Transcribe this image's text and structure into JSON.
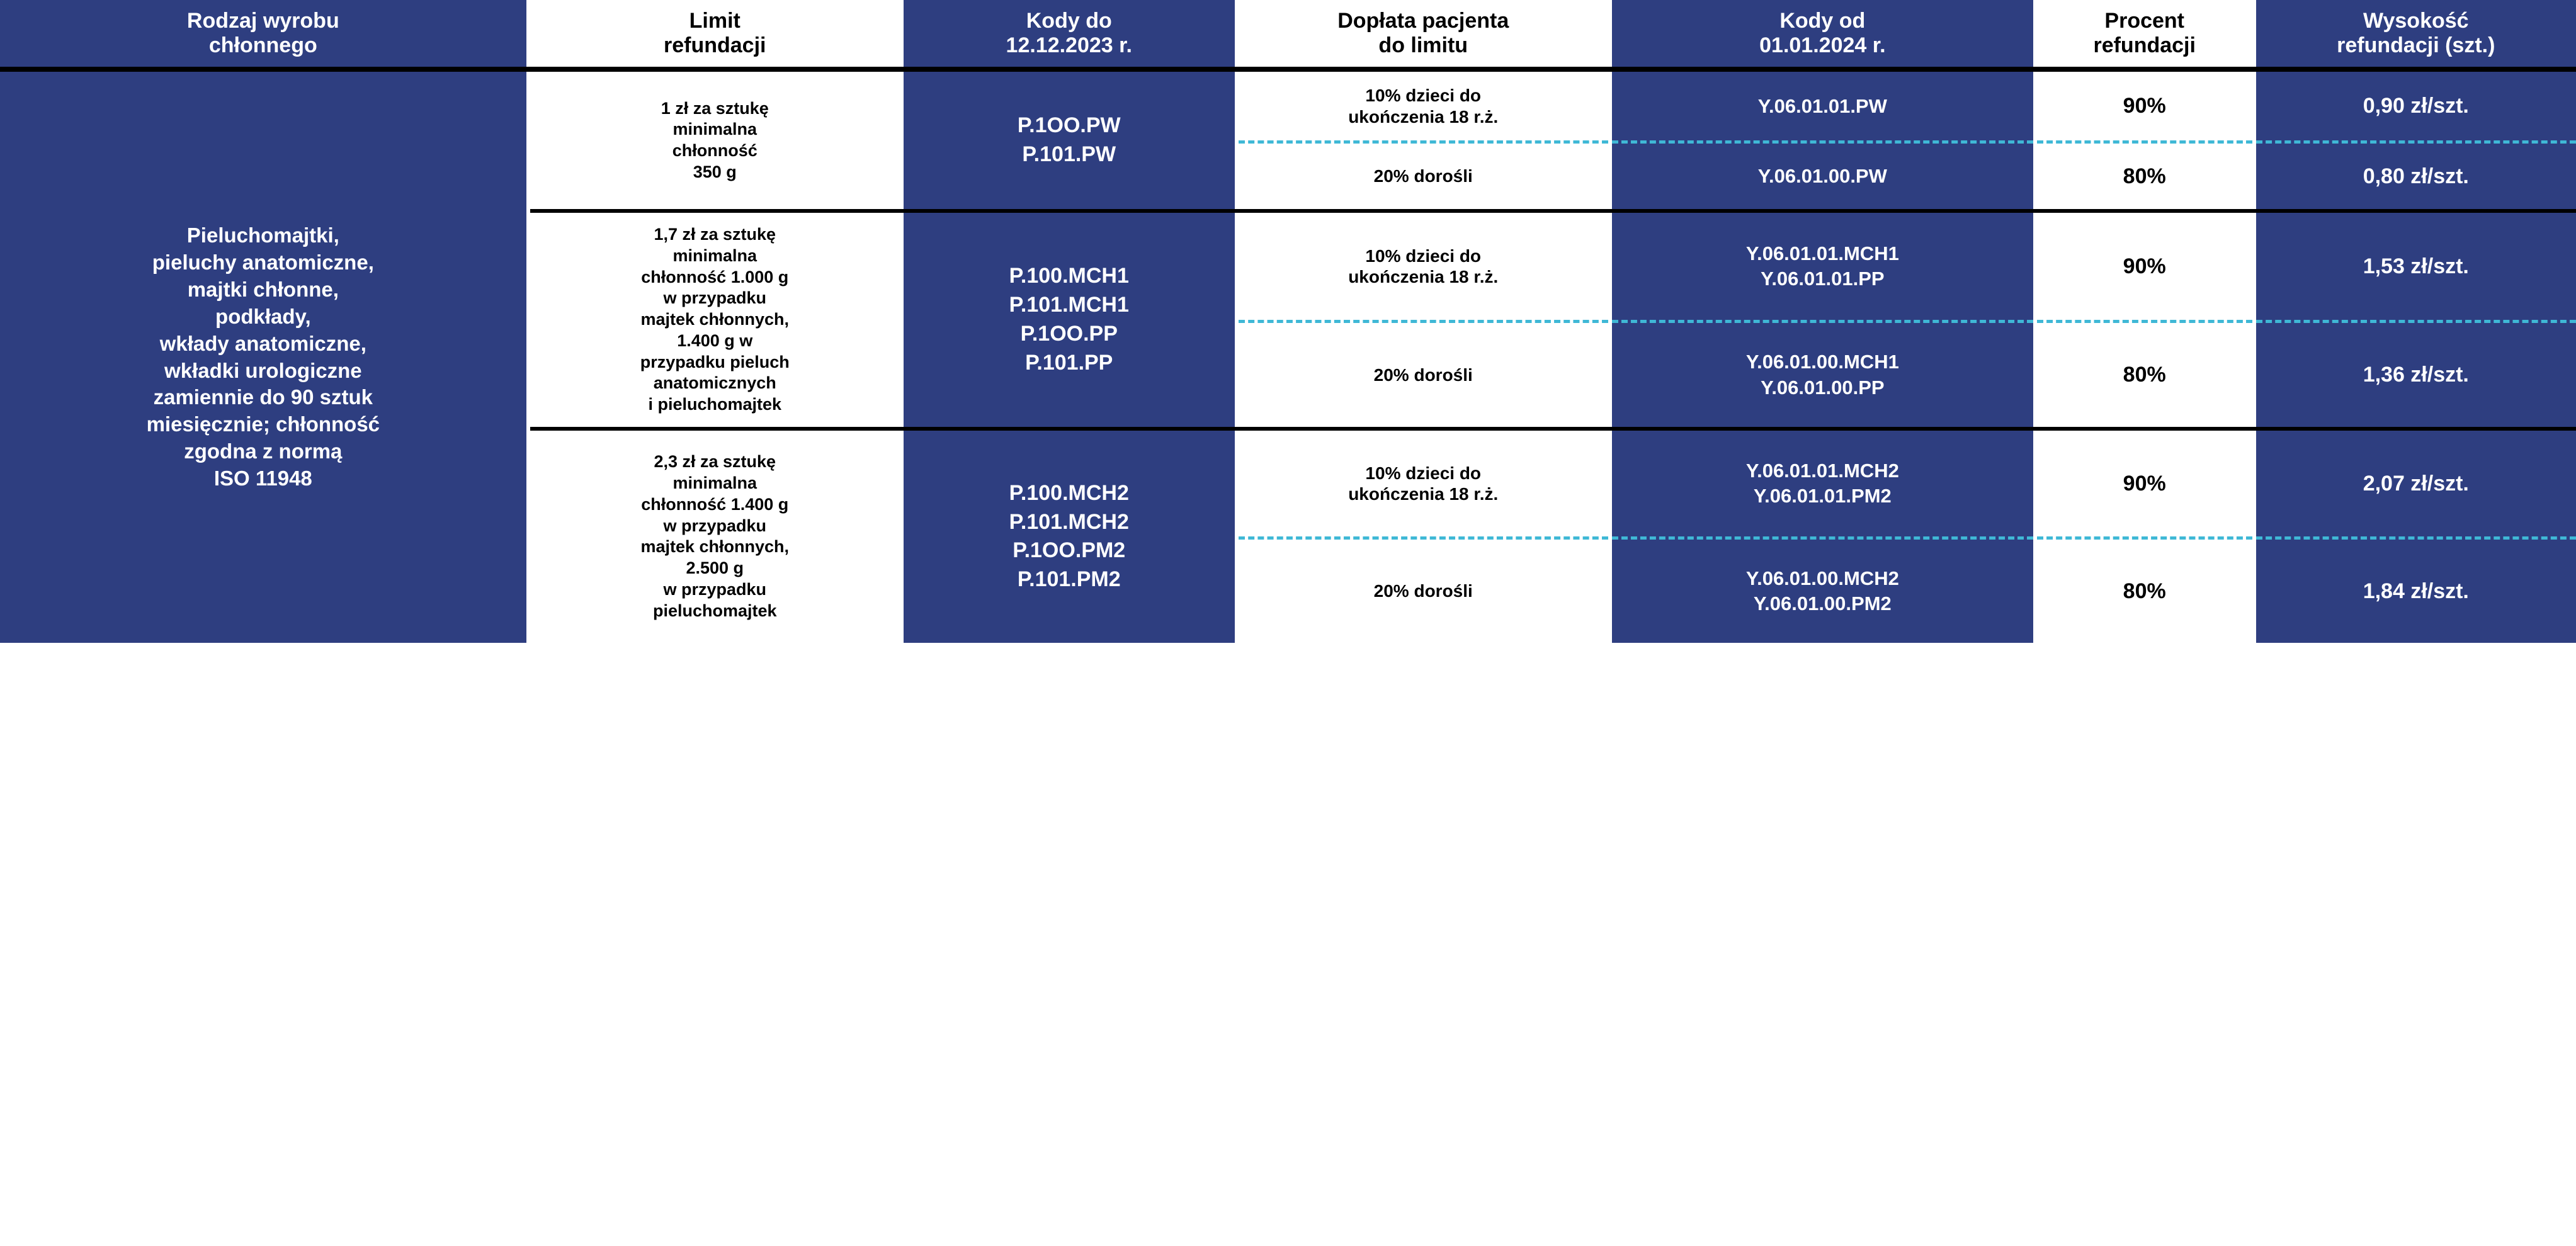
{
  "colors": {
    "navy": "#2e3e80",
    "white": "#ffffff",
    "black": "#000000",
    "dash": "#3fb8d6"
  },
  "typography": {
    "header_fontsize_pt": 25,
    "body_fontsize_pt": 22,
    "font_weight": 700,
    "font_family": "Segoe UI"
  },
  "table": {
    "columns": [
      {
        "key": "rodzaj",
        "label": "Rodzaj wyrobu\nchłonnego",
        "bg": "navy",
        "width_pct": 20.5
      },
      {
        "key": "limit",
        "label": "Limit\nrefundacji",
        "bg": "white",
        "width_pct": 14.5
      },
      {
        "key": "kody_do",
        "label": "Kody do\n12.12.2023 r.",
        "bg": "navy",
        "width_pct": 13
      },
      {
        "key": "doplata",
        "label": "Dopłata pacjenta\ndo limitu",
        "bg": "white",
        "width_pct": 14.5
      },
      {
        "key": "kody_od",
        "label": "Kody od\n01.01.2024 r.",
        "bg": "navy",
        "width_pct": 16.5
      },
      {
        "key": "procent",
        "label": "Procent\nrefundacji",
        "bg": "white",
        "width_pct": 8.5
      },
      {
        "key": "wysokosc",
        "label": "Wysokość\nrefundacji (szt.)",
        "bg": "navy",
        "width_pct": 12.5
      }
    ],
    "row_label": "Pieluchomajtki,\npieluchy anatomiczne,\nmajtki chłonne,\npodkłady,\nwkłady anatomiczne,\nwkładki urologiczne\nzamiennie do 90 sztuk\nmiesięcznie; chłonność\nzgodna z normą\nISO 11948",
    "groups": [
      {
        "limit": "1 zł za sztukę\nminimalna\nchłonność\n350 g",
        "codes_old": "P.1OO.PW\nP.101.PW",
        "sub": [
          {
            "doplata": "10% dzieci do\nukończenia 18 r.ż.",
            "codes_new": "Y.06.01.01.PW",
            "percent": "90%",
            "amount": "0,90 zł/szt."
          },
          {
            "doplata": "20% dorośli",
            "codes_new": "Y.06.01.00.PW",
            "percent": "80%",
            "amount": "0,80 zł/szt."
          }
        ]
      },
      {
        "limit": "1,7 zł za sztukę\nminimalna\nchłonność 1.000 g\nw przypadku\nmajtek chłonnych,\n1.400 g w\nprzypadku pieluch\nanatomicznych\ni pieluchomajtek",
        "codes_old": "P.100.MCH1\nP.101.MCH1\nP.1OO.PP\nP.101.PP",
        "sub": [
          {
            "doplata": "10% dzieci do\nukończenia 18 r.ż.",
            "codes_new": "Y.06.01.01.MCH1\nY.06.01.01.PP",
            "percent": "90%",
            "amount": "1,53 zł/szt."
          },
          {
            "doplata": "20% dorośli",
            "codes_new": "Y.06.01.00.MCH1\nY.06.01.00.PP",
            "percent": "80%",
            "amount": "1,36 zł/szt."
          }
        ]
      },
      {
        "limit": "2,3 zł za sztukę\nminimalna\nchłonność 1.400 g\nw przypadku\nmajtek chłonnych,\n2.500 g\nw przypadku\npieluchomajtek",
        "codes_old": "P.100.MCH2\nP.101.MCH2\nP.1OO.PM2\nP.101.PM2",
        "sub": [
          {
            "doplata": "10% dzieci do\nukończenia 18 r.ż.",
            "codes_new": "Y.06.01.01.MCH2\nY.06.01.01.PM2",
            "percent": "90%",
            "amount": "2,07 zł/szt."
          },
          {
            "doplata": "20% dorośli",
            "codes_new": "Y.06.01.00.MCH2\nY.06.01.00.PM2",
            "percent": "80%",
            "amount": "1,84 zł/szt."
          }
        ]
      }
    ]
  }
}
